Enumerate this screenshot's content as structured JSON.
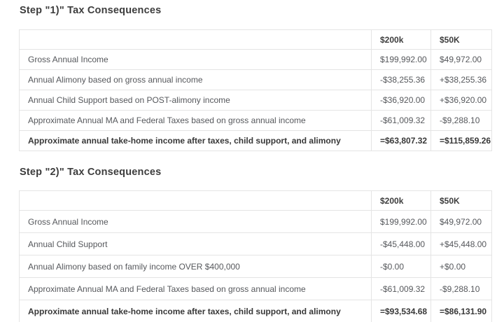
{
  "colors": {
    "background": "#ffffff",
    "title_text": "#3d3d3d",
    "cell_text": "#56585c",
    "total_text": "#383838",
    "border": "#e4e4e4"
  },
  "sections": [
    {
      "title": "Step \"1)\" Tax Consequences",
      "columns": {
        "label": "",
        "c1": "$200k",
        "c2": "$50K"
      },
      "rows": [
        {
          "label": "Gross Annual Income",
          "v1": "$199,992.00",
          "v2": "$49,972.00"
        },
        {
          "label": "Annual Alimony based on gross annual income",
          "v1": "-$38,255.36",
          "v2": "+$38,255.36"
        },
        {
          "label": "Annual Child Support based on POST-alimony income",
          "v1": "-$36,920.00",
          "v2": "+$36,920.00"
        },
        {
          "label": "Approximate Annual MA and Federal Taxes based on gross annual income",
          "v1": "-$61,009.32",
          "v2": "-$9,288.10"
        },
        {
          "label": "Approximate annual take-home income after taxes, child support, and alimony",
          "v1": "=$63,807.32",
          "v2": "=$115,859.26"
        }
      ]
    },
    {
      "title": "Step \"2)\" Tax Consequences",
      "columns": {
        "label": "",
        "c1": "$200k",
        "c2": "$50K"
      },
      "rows": [
        {
          "label": "Gross Annual Income",
          "v1": "$199,992.00",
          "v2": "$49,972.00"
        },
        {
          "label": "Annual Child Support",
          "v1": "-$45,448.00",
          "v2": "+$45,448.00"
        },
        {
          "label": "Annual Alimony based on family income OVER $400,000",
          "v1": "-$0.00",
          "v2": "+$0.00"
        },
        {
          "label": "Approximate Annual MA and Federal Taxes based on gross annual income",
          "v1": "-$61,009.32",
          "v2": "-$9,288.10"
        },
        {
          "label": "Approximate annual take-home income after taxes, child support, and alimony",
          "v1": "=$93,534.68",
          "v2": "=$86,131.90"
        }
      ]
    }
  ]
}
